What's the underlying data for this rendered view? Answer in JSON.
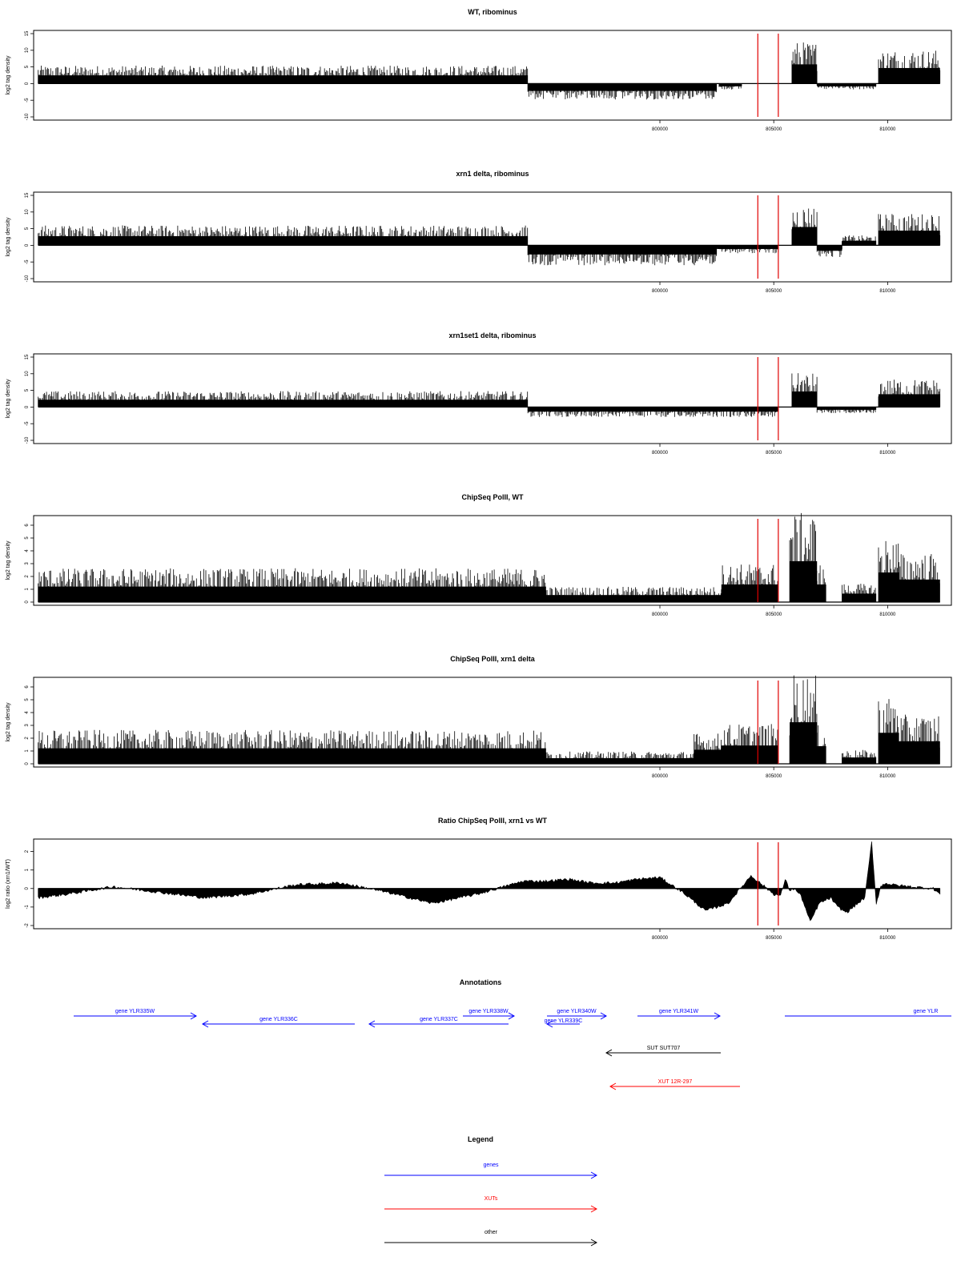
{
  "figure": {
    "annotations_title": "Annotations",
    "legend_title": "Legend"
  },
  "chart_data": [
    {
      "type": "bar",
      "title": "WT, ribominus",
      "ylabel": "log2 tag density",
      "xlim": [
        772500,
        812800
      ],
      "ylim": [
        -10,
        15
      ],
      "yticks": [
        -10,
        -5,
        0,
        5,
        10,
        15
      ],
      "xticks": [
        800000,
        805000,
        810000
      ],
      "xtick_labels": [
        "800000",
        "805000",
        "810000"
      ],
      "red_lines": [
        804300,
        805200
      ],
      "segments": [
        {
          "x0": 772700,
          "x1": 794200,
          "value": 4.5
        },
        {
          "x0": 794200,
          "x1": 802500,
          "value": -4.0
        },
        {
          "x0": 802600,
          "x1": 803600,
          "value": -1.5
        },
        {
          "x0": 805800,
          "x1": 806900,
          "value": 10.5
        },
        {
          "x0": 806900,
          "x1": 809500,
          "value": -1.5
        },
        {
          "x0": 809600,
          "x1": 812300,
          "value": 8.5
        }
      ]
    },
    {
      "type": "bar",
      "title": "xrn1 delta, ribominus",
      "ylabel": "log2 tag density",
      "xlim": [
        772500,
        812800
      ],
      "ylim": [
        -10,
        15
      ],
      "yticks": [
        -10,
        -5,
        0,
        5,
        10,
        15
      ],
      "xticks": [
        800000,
        805000,
        810000
      ],
      "xtick_labels": [
        "800000",
        "805000",
        "810000"
      ],
      "red_lines": [
        804300,
        805200
      ],
      "segments": [
        {
          "x0": 772700,
          "x1": 794200,
          "value": 5.0
        },
        {
          "x0": 794200,
          "x1": 802500,
          "value": -5.0
        },
        {
          "x0": 802500,
          "x1": 805200,
          "value": -2.0
        },
        {
          "x0": 805800,
          "x1": 806900,
          "value": 10.0
        },
        {
          "x0": 806900,
          "x1": 808000,
          "value": -3.0
        },
        {
          "x0": 808000,
          "x1": 809500,
          "value": 2.5
        },
        {
          "x0": 809600,
          "x1": 812300,
          "value": 8.0
        }
      ]
    },
    {
      "type": "bar",
      "title": "xrn1set1 delta, ribominus",
      "ylabel": "log2 tag density",
      "xlim": [
        772500,
        812800
      ],
      "ylim": [
        -10,
        15
      ],
      "yticks": [
        -10,
        -5,
        0,
        5,
        10,
        15
      ],
      "xticks": [
        800000,
        805000,
        810000
      ],
      "xtick_labels": [
        "800000",
        "805000",
        "810000"
      ],
      "red_lines": [
        804300,
        805200
      ],
      "segments": [
        {
          "x0": 772700,
          "x1": 794200,
          "value": 4.0
        },
        {
          "x0": 794200,
          "x1": 805200,
          "value": -2.5
        },
        {
          "x0": 805800,
          "x1": 806900,
          "value": 8.5
        },
        {
          "x0": 806900,
          "x1": 809500,
          "value": -1.5
        },
        {
          "x0": 809600,
          "x1": 812300,
          "value": 7.0
        }
      ]
    },
    {
      "type": "bar",
      "title": "ChipSeq PolII, WT",
      "ylabel": "log2 tag density",
      "xlim": [
        772500,
        812800
      ],
      "ylim": [
        0,
        6.5
      ],
      "yticks": [
        0,
        1,
        2,
        3,
        4,
        5,
        6
      ],
      "xticks": [
        800000,
        805000,
        810000
      ],
      "xtick_labels": [
        "800000",
        "805000",
        "810000"
      ],
      "red_lines": [
        804300,
        805200
      ],
      "segments": [
        {
          "x0": 772700,
          "x1": 795000,
          "value": 2.2
        },
        {
          "x0": 795000,
          "x1": 802700,
          "value": 1.0
        },
        {
          "x0": 802700,
          "x1": 805200,
          "value": 2.5
        },
        {
          "x0": 805700,
          "x1": 806900,
          "value": 5.8
        },
        {
          "x0": 806900,
          "x1": 807300,
          "value": 2.5
        },
        {
          "x0": 808000,
          "x1": 809500,
          "value": 1.2
        },
        {
          "x0": 809600,
          "x1": 810500,
          "value": 4.2
        },
        {
          "x0": 810500,
          "x1": 812300,
          "value": 3.2
        }
      ]
    },
    {
      "type": "bar",
      "title": "ChipSeq PolII, xrn1 delta",
      "ylabel": "log2 tag density",
      "xlim": [
        772500,
        812800
      ],
      "ylim": [
        0,
        6.5
      ],
      "yticks": [
        0,
        1,
        2,
        3,
        4,
        5,
        6
      ],
      "xticks": [
        800000,
        805000,
        810000
      ],
      "xtick_labels": [
        "800000",
        "805000",
        "810000"
      ],
      "red_lines": [
        804300,
        805200
      ],
      "segments": [
        {
          "x0": 772700,
          "x1": 795000,
          "value": 2.2
        },
        {
          "x0": 795000,
          "x1": 801500,
          "value": 0.8
        },
        {
          "x0": 801500,
          "x1": 802700,
          "value": 2.0
        },
        {
          "x0": 802700,
          "x1": 805200,
          "value": 2.6
        },
        {
          "x0": 805700,
          "x1": 806900,
          "value": 5.9
        },
        {
          "x0": 806900,
          "x1": 807300,
          "value": 2.5
        },
        {
          "x0": 808000,
          "x1": 809500,
          "value": 0.9
        },
        {
          "x0": 809600,
          "x1": 810500,
          "value": 4.4
        },
        {
          "x0": 810500,
          "x1": 812300,
          "value": 3.2
        }
      ]
    },
    {
      "type": "area",
      "title": "Ratio ChipSeq PolII, xrn1 vs WT",
      "ylabel": "log2 ratio (xrn1/WT)",
      "xlim": [
        772500,
        812800
      ],
      "ylim": [
        -2,
        2.5
      ],
      "yticks": [
        -2,
        -1,
        0,
        1,
        2
      ],
      "xticks": [
        800000,
        805000,
        810000
      ],
      "xtick_labels": [
        "800000",
        "805000",
        "810000"
      ],
      "red_lines": [
        804300,
        805200
      ],
      "x": [
        772700,
        774000,
        776000,
        778000,
        780000,
        782000,
        784000,
        786000,
        788000,
        790000,
        792000,
        794000,
        795000,
        796000,
        797000,
        798000,
        799000,
        800000,
        801000,
        802000,
        803000,
        804000,
        805000,
        805300,
        805500,
        805700,
        805900,
        806200,
        806600,
        807000,
        807500,
        807800,
        808200,
        808600,
        809000,
        809300,
        809500,
        809700,
        809900,
        810200,
        811000,
        812000,
        812300
      ],
      "y": [
        -0.5,
        -0.3,
        0.1,
        -0.2,
        -0.5,
        -0.3,
        0.2,
        0.3,
        -0.2,
        -0.8,
        -0.3,
        0.4,
        0.4,
        0.5,
        0.3,
        0.3,
        0.5,
        0.6,
        -0.2,
        -1.2,
        -0.8,
        0.7,
        -0.3,
        -0.4,
        0.5,
        -0.1,
        0.0,
        -0.4,
        -1.8,
        -0.8,
        -0.5,
        -1.0,
        -1.3,
        -0.9,
        -0.5,
        2.5,
        -0.8,
        0.1,
        0.3,
        0.2,
        0.1,
        0.0,
        -0.3
      ]
    },
    {
      "type": "annotation",
      "title": "Annotations",
      "xlim": [
        772500,
        812800
      ],
      "features": [
        {
          "label": "gene YLR335W",
          "x0": 773000,
          "x1": 778500,
          "strand": "+",
          "row": 0,
          "color": "#0000ff"
        },
        {
          "label": "gene YLR336C",
          "x0": 778800,
          "x1": 785500,
          "strand": "-",
          "row": 1,
          "color": "#0000ff"
        },
        {
          "label": "gene YLR337C",
          "x0": 786000,
          "x1": 792000,
          "strand": "-",
          "row": 1,
          "color": "#0000ff"
        },
        {
          "label": "gene YLR338W",
          "x0": 790000,
          "x1": 792200,
          "strand": "+",
          "row": 0,
          "color": "#0000ff"
        },
        {
          "label": "gene YLR339C",
          "x0": 794000,
          "x1": 795500,
          "strand": "-",
          "row": 1,
          "color": "#0000ff"
        },
        {
          "label": "gene YLR340W",
          "x0": 793000,
          "x1": 795900,
          "strand": "+",
          "row": 0,
          "color": "#0000ff"
        },
        {
          "label": "gene YLR341W",
          "x0": 797000,
          "x1": 800500,
          "strand": "+",
          "row": 0,
          "color": "#0000ff"
        },
        {
          "label": "gene YLR",
          "x0": 803000,
          "x1": 812800,
          "strand": "+",
          "row": 0,
          "color": "#0000ff"
        },
        {
          "label": "SUT SUT707",
          "x0": 795800,
          "x1": 800500,
          "strand": "-",
          "row": 2,
          "color": "#000000"
        },
        {
          "label": "XUT 12R-297",
          "x0": 796000,
          "x1": 801500,
          "strand": "-",
          "row": 3,
          "color": "#ff0000"
        }
      ]
    },
    {
      "type": "legend",
      "title": "Legend",
      "entries": [
        {
          "label": "genes",
          "color": "#0000ff"
        },
        {
          "label": "XUTs",
          "color": "#ff0000"
        },
        {
          "label": "other",
          "color": "#000000"
        }
      ]
    }
  ]
}
